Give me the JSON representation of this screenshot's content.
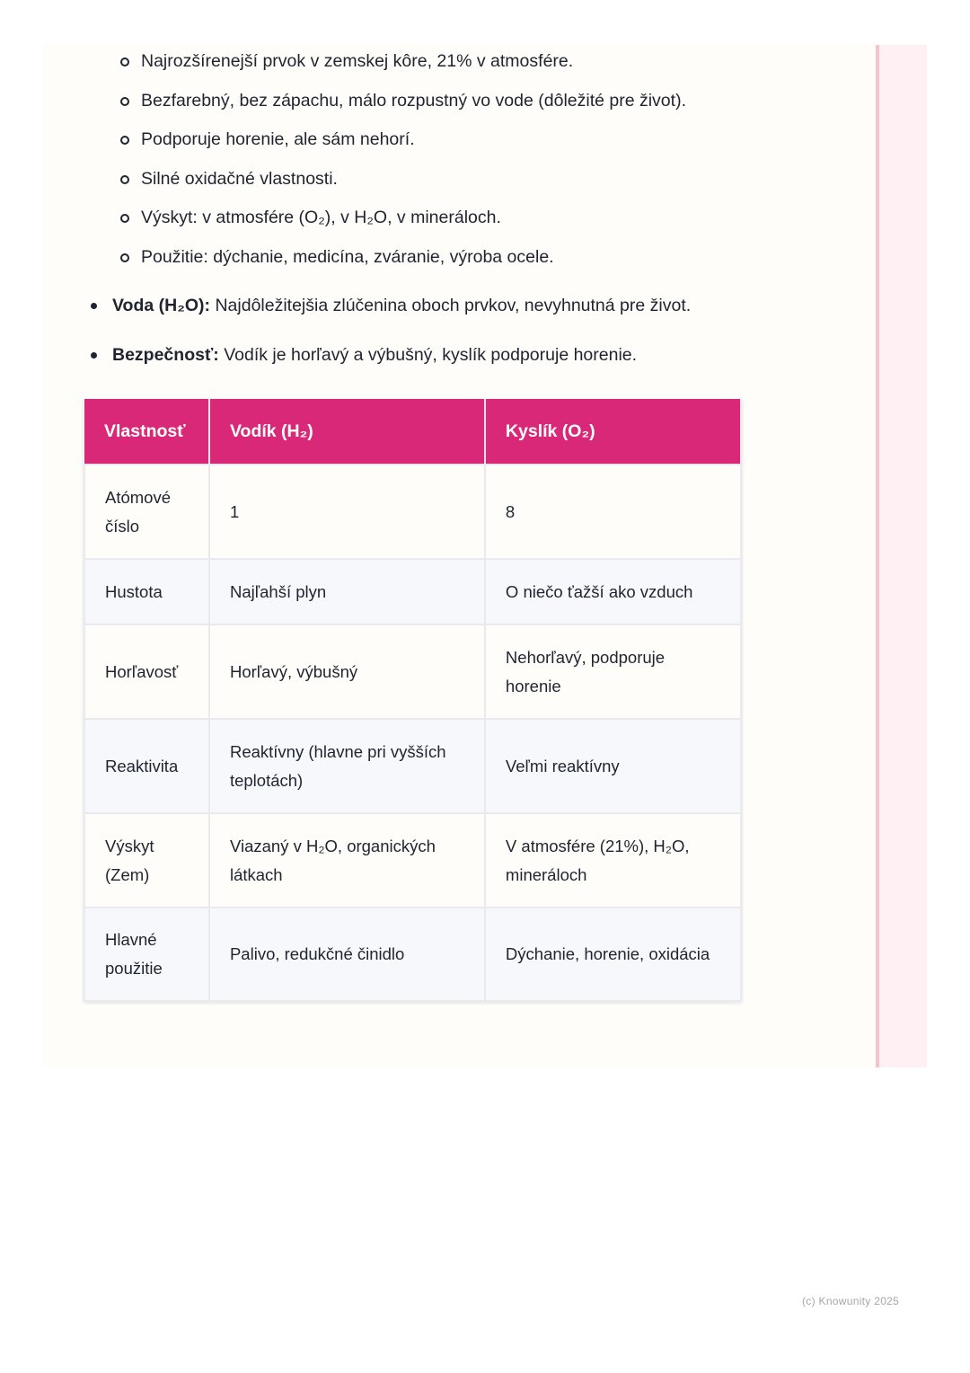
{
  "sub_bullets": [
    "Najrozšírenejší prvok v zemskej kôre, 21% v atmosfére.",
    "Bezfarebný, bez zápachu, málo rozpustný vo vode (dôležité pre život).",
    "Podporuje horenie, ale sám nehorí.",
    "Silné oxidačné vlastnosti.",
    "Výskyt: v atmosfére (O₂), v H₂O, v mineráloch.",
    "Použitie: dýchanie, medicína, zváranie, výroba ocele."
  ],
  "main_bullets": [
    {
      "term": "Voda (H₂O):",
      "text": " Najdôležitejšia zlúčenina oboch prvkov, nevyhnutná pre život."
    },
    {
      "term": "Bezpečnosť:",
      "text": " Vodík je horľavý a výbušný, kyslík podporuje horenie."
    }
  ],
  "table": {
    "headers": [
      "Vlastnosť",
      "Vodík (H₂)",
      "Kyslík (O₂)"
    ],
    "rows": [
      [
        "Atómové číslo",
        "1",
        "8"
      ],
      [
        "Hustota",
        "Najľahší plyn",
        "O niečo ťažší ako vzduch"
      ],
      [
        "Horľavosť",
        "Horľavý, výbušný",
        "Nehorľavý, podporuje horenie"
      ],
      [
        "Reaktivita",
        "Reaktívny (hlavne pri vyšších teplotách)",
        "Veľmi reaktívny"
      ],
      [
        "Výskyt (Zem)",
        "Viazaný v H₂O, organických látkach",
        "V atmosfére (21%), H₂O, mineráloch"
      ],
      [
        "Hlavné použitie",
        "Palivo, redukčné činidlo",
        "Dýchanie, horenie, oxidácia"
      ]
    ]
  },
  "footer": "(c) Knowunity 2025",
  "colors": {
    "header": "#da2878",
    "accent_strip": "#f4c3d2"
  }
}
